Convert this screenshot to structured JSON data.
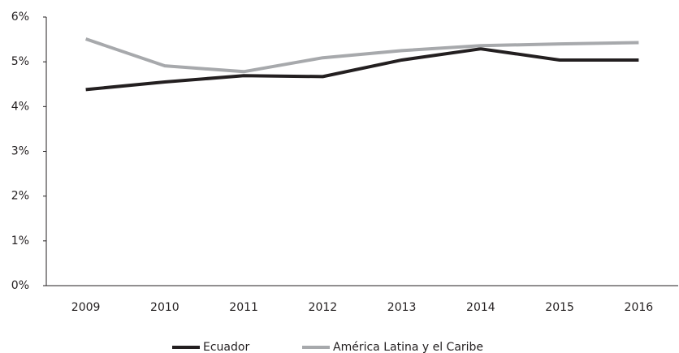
{
  "chart_data": {
    "type": "line",
    "categories": [
      "2009",
      "2010",
      "2011",
      "2012",
      "2013",
      "2014",
      "2015",
      "2016"
    ],
    "series": [
      {
        "name": "Ecuador",
        "color": "#231f20",
        "values": [
          4.38,
          4.55,
          4.69,
          4.67,
          5.04,
          5.29,
          5.04,
          5.04
        ]
      },
      {
        "name": "América Latina y el Caribe",
        "color": "#a7a9ac",
        "values": [
          5.51,
          4.91,
          4.78,
          5.09,
          5.25,
          5.36,
          5.4,
          5.43
        ]
      }
    ],
    "ylim": [
      0,
      6
    ],
    "yticks": [
      {
        "value": 0,
        "label": "0%"
      },
      {
        "value": 1,
        "label": "1%"
      },
      {
        "value": 2,
        "label": "2%"
      },
      {
        "value": 3,
        "label": "3%"
      },
      {
        "value": 4,
        "label": "4%"
      },
      {
        "value": 5,
        "label": "5%"
      },
      {
        "value": 6,
        "label": "6%"
      }
    ],
    "legend": "bottom"
  }
}
